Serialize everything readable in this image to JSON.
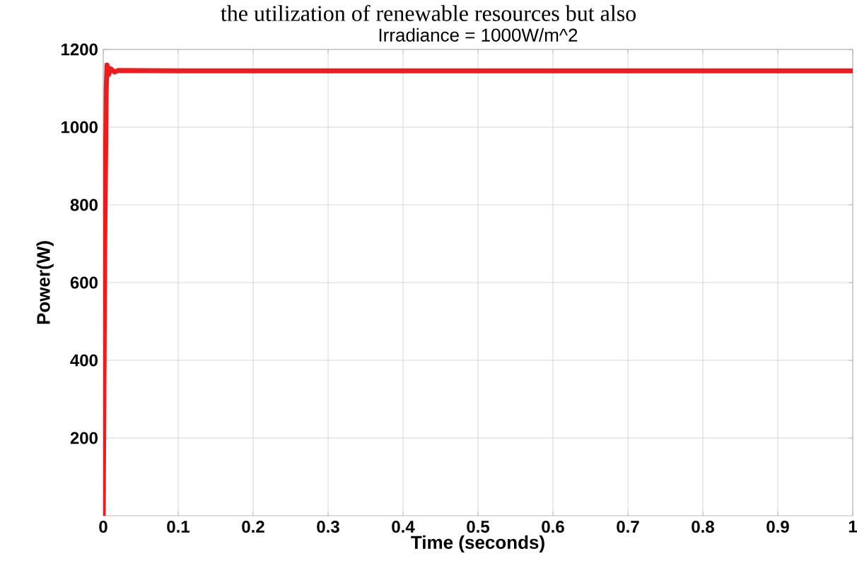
{
  "chart_data": {
    "type": "line",
    "title": "Irradiance = 1000W/m^2",
    "xlabel": "Time (seconds)",
    "ylabel": "Power(W)",
    "annotations": [
      "the utilization of renewable resources but also"
    ],
    "x": [
      0,
      0.002,
      0.004,
      0.005,
      0.007,
      0.01,
      0.015,
      0.02,
      0.1,
      0.5,
      1
    ],
    "series": [
      {
        "color": "#ee1c1c",
        "values": [
          0,
          700,
          1100,
          1160,
          1135,
          1150,
          1142,
          1146,
          1145,
          1145,
          1145
        ]
      }
    ],
    "xlim": [
      0,
      1
    ],
    "ylim": [
      0,
      1200
    ],
    "xticks": [
      0,
      0.1,
      0.2,
      0.3,
      0.4,
      0.5,
      0.6,
      0.7,
      0.8,
      0.9,
      1
    ],
    "yticks": [
      200,
      400,
      600,
      800,
      1000,
      1200
    ],
    "grid": true,
    "line_style": "solid"
  }
}
